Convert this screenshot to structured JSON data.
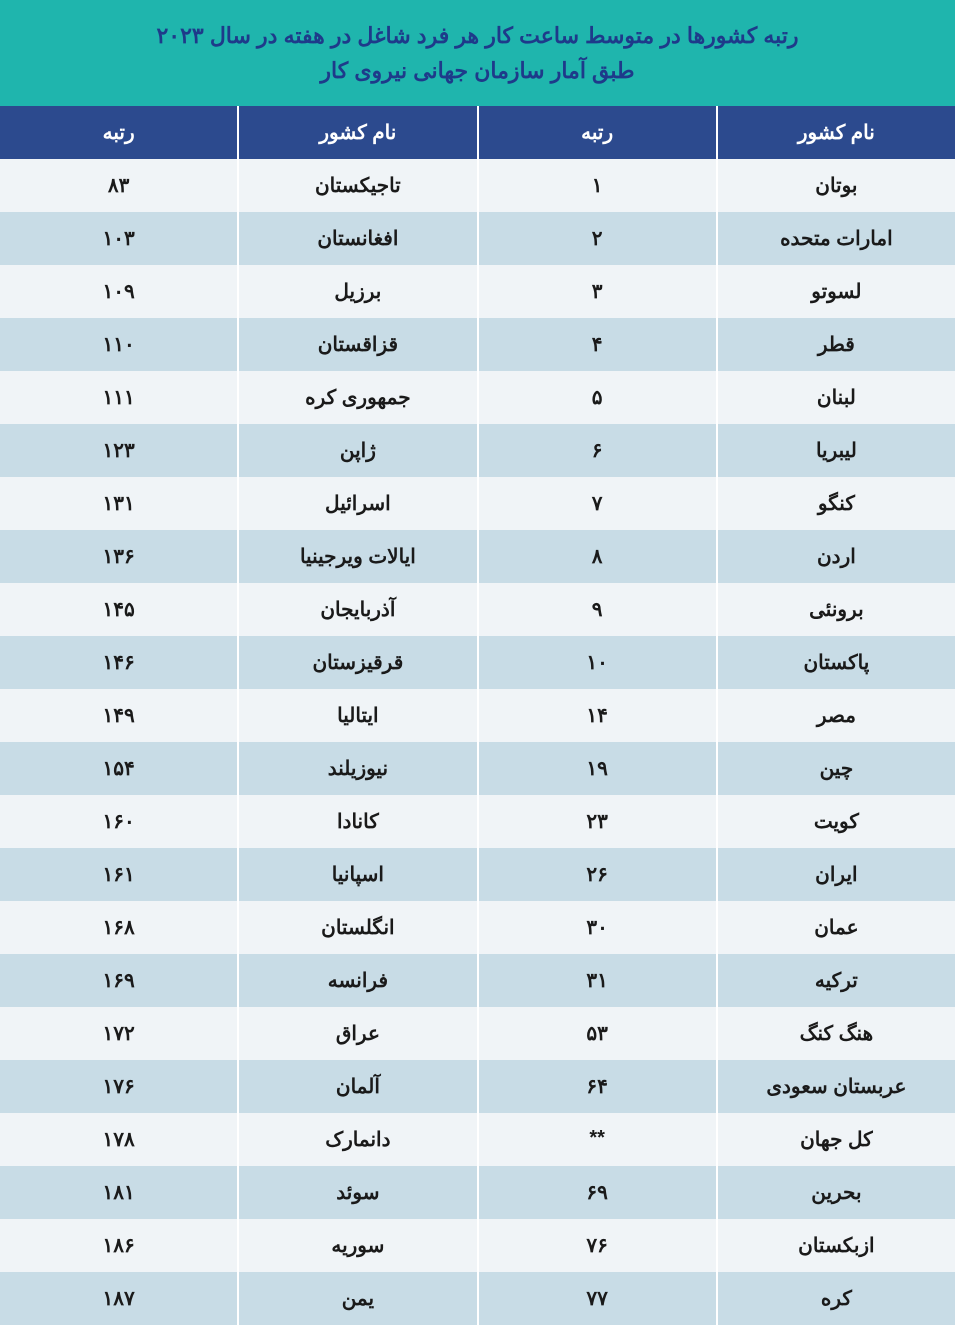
{
  "title": {
    "line1": "رتبه کشورها در متوسط ساعت کار هر فرد شاغل در هفته در سال ۲۰۲۳",
    "line2": "طبق آمار سازمان جهانی نیروی کار"
  },
  "headers": {
    "country1": "نام کشور",
    "rank1": "رتبه",
    "country2": "نام کشور",
    "rank2": "رتبه"
  },
  "rows": [
    {
      "c1": "بوتان",
      "r1": "۱",
      "c2": "تاجیکستان",
      "r2": "۸۳"
    },
    {
      "c1": "امارات متحده",
      "r1": "۲",
      "c2": "افغانستان",
      "r2": "۱۰۳"
    },
    {
      "c1": "لسوتو",
      "r1": "۳",
      "c2": "برزیل",
      "r2": "۱۰۹"
    },
    {
      "c1": "قطر",
      "r1": "۴",
      "c2": "قزاقستان",
      "r2": "۱۱۰"
    },
    {
      "c1": "لبنان",
      "r1": "۵",
      "c2": "جمهوری کره",
      "r2": "۱۱۱"
    },
    {
      "c1": "لیبریا",
      "r1": "۶",
      "c2": "ژاپن",
      "r2": "۱۲۳"
    },
    {
      "c1": "کنگو",
      "r1": "۷",
      "c2": "اسرائیل",
      "r2": "۱۳۱"
    },
    {
      "c1": "اردن",
      "r1": "۸",
      "c2": "ایالات ویرجینیا",
      "r2": "۱۳۶"
    },
    {
      "c1": "برونئی",
      "r1": "۹",
      "c2": "آذربایجان",
      "r2": "۱۴۵"
    },
    {
      "c1": "پاکستان",
      "r1": "۱۰",
      "c2": "قرقیزستان",
      "r2": "۱۴۶"
    },
    {
      "c1": "مصر",
      "r1": "۱۴",
      "c2": "ایتالیا",
      "r2": "۱۴۹"
    },
    {
      "c1": "چین",
      "r1": "۱۹",
      "c2": "نیوزیلند",
      "r2": "۱۵۴"
    },
    {
      "c1": "کویت",
      "r1": "۲۳",
      "c2": "کانادا",
      "r2": "۱۶۰"
    },
    {
      "c1": "ایران",
      "r1": "۲۶",
      "c2": "اسپانیا",
      "r2": "۱۶۱"
    },
    {
      "c1": "عمان",
      "r1": "۳۰",
      "c2": "انگلستان",
      "r2": "۱۶۸"
    },
    {
      "c1": "ترکیه",
      "r1": "۳۱",
      "c2": "فرانسه",
      "r2": "۱۶۹"
    },
    {
      "c1": "هنگ کنگ",
      "r1": "۵۳",
      "c2": "عراق",
      "r2": "۱۷۲"
    },
    {
      "c1": "عربستان سعودی",
      "r1": "۶۴",
      "c2": "آلمان",
      "r2": "۱۷۶"
    },
    {
      "c1": "کل جهان",
      "r1": "**",
      "c2": "دانمارک",
      "r2": "۱۷۸"
    },
    {
      "c1": "بحرین",
      "r1": "۶۹",
      "c2": "سوئد",
      "r2": "۱۸۱"
    },
    {
      "c1": "ازبکستان",
      "r1": "۷۶",
      "c2": "سوریه",
      "r2": "۱۸۶"
    },
    {
      "c1": "کره",
      "r1": "۷۷",
      "c2": "یمن",
      "r2": "۱۸۷"
    }
  ],
  "colors": {
    "title_bg": "#1fb5ad",
    "title_text": "#1e3a8a",
    "header_bg": "#2c4a8e",
    "header_text": "#ffffff",
    "row_even_bg": "#f0f4f7",
    "row_odd_bg": "#c8dce6",
    "cell_text": "#1a1a1a",
    "border": "#ffffff"
  },
  "typography": {
    "title_fontsize": 22,
    "header_fontsize": 20,
    "cell_fontsize": 20,
    "font_family": "Tahoma"
  }
}
